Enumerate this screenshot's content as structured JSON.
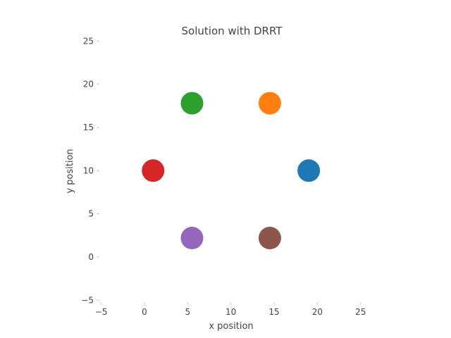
{
  "chart_data": {
    "type": "scatter",
    "title": "Solution with DRRT",
    "xlabel": "x position",
    "ylabel": "y position",
    "xlim": [
      -5,
      25
    ],
    "ylim": [
      -5,
      25
    ],
    "xticks": [
      "−5",
      "0",
      "5",
      "10",
      "15",
      "20",
      "25"
    ],
    "yticks": [
      "−5",
      "0",
      "5",
      "10",
      "15",
      "20",
      "25"
    ],
    "grid": false,
    "series": [
      {
        "x": 19.0,
        "y": 10.0,
        "color": "#1f77b4"
      },
      {
        "x": 14.5,
        "y": 17.8,
        "color": "#ff7f0e"
      },
      {
        "x": 5.5,
        "y": 17.8,
        "color": "#2ca02c"
      },
      {
        "x": 1.0,
        "y": 10.0,
        "color": "#d62728"
      },
      {
        "x": 5.5,
        "y": 2.2,
        "color": "#9467bd"
      },
      {
        "x": 14.5,
        "y": 2.2,
        "color": "#8c564b"
      }
    ]
  }
}
